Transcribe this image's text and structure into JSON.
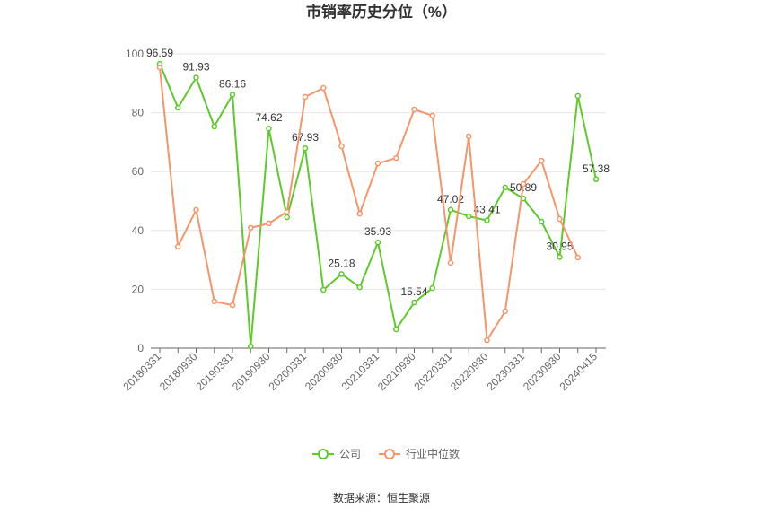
{
  "chart_data": {
    "type": "line",
    "title": "市销率历史分位（%）",
    "source": "数据来源：恒生聚源",
    "categories": [
      "20180331",
      null,
      "20180930",
      null,
      "20190331",
      null,
      "20190930",
      null,
      "20200331",
      null,
      "20200930",
      null,
      "20210331",
      null,
      "20210930",
      null,
      "20220331",
      null,
      "20220930",
      null,
      "20230331",
      null,
      "20230930",
      null,
      "20240415"
    ],
    "series": [
      {
        "name": "公司",
        "color": "#5ec92a",
        "values": [
          96.59,
          81.7,
          91.93,
          75.3,
          86.16,
          0.6,
          74.62,
          44.5,
          67.93,
          19.8,
          25.18,
          20.7,
          35.93,
          6.4,
          15.54,
          20.4,
          47.02,
          44.8,
          43.41,
          54.6,
          50.89,
          43,
          30.95,
          85.7,
          57.38
        ]
      },
      {
        "name": "行业中位数",
        "color": "#f4956a",
        "values": [
          95.4,
          34.5,
          47,
          15.9,
          14.6,
          40.9,
          42.4,
          46.3,
          85.4,
          88.4,
          68.6,
          45.7,
          62.8,
          64.6,
          81.1,
          79,
          29,
          72,
          2.7,
          12.5,
          55.8,
          63.7,
          43.9,
          30.8,
          null
        ]
      }
    ],
    "ylim": [
      0,
      100
    ],
    "yticks": [
      0,
      20,
      40,
      60,
      80,
      100
    ],
    "grid": true,
    "legend": "bottom"
  }
}
